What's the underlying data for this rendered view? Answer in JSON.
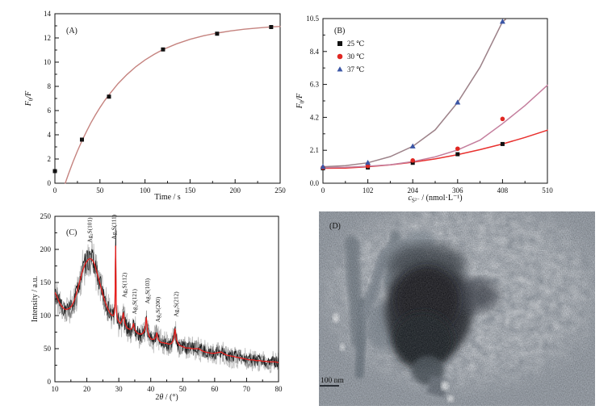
{
  "figure": {
    "background": "#ffffff"
  },
  "chart_data": [
    {
      "id": "panel-a",
      "type": "scatter",
      "panel_label": "(A)",
      "xlabel_parts": [
        {
          "t": "Time / s"
        }
      ],
      "ylabel_parts": [
        {
          "t": "F",
          "i": 1
        },
        {
          "t": "0",
          "sub": 1
        },
        {
          "t": "/",
          "i": 1
        },
        {
          "t": "F",
          "i": 1
        }
      ],
      "xlim": [
        0,
        250
      ],
      "ylim": [
        0,
        14
      ],
      "xticks": [
        0,
        50,
        100,
        150,
        200,
        250
      ],
      "xtick_labels": [
        "0",
        "50",
        "100",
        "150",
        "200",
        "250"
      ],
      "yticks": [
        0,
        2,
        4,
        6,
        8,
        10,
        12,
        14
      ],
      "ytick_labels": [
        "0",
        "2",
        "4",
        "6",
        "8",
        "10",
        "12",
        "14"
      ],
      "x_minor": 25,
      "y_minor": 1,
      "series": [
        {
          "name": "fit-curve",
          "mode": "line",
          "color": "#c5837f",
          "width": 1.4,
          "x": [
            11.5,
            15,
            20,
            25,
            30,
            35,
            40,
            45,
            50,
            55,
            60,
            70,
            80,
            90,
            100,
            110,
            120,
            135,
            150,
            165,
            180,
            195,
            210,
            225,
            240,
            250
          ],
          "y": [
            0,
            0.74,
            1.74,
            2.66,
            3.5,
            4.27,
            4.99,
            5.64,
            6.25,
            6.81,
            7.31,
            8.22,
            8.98,
            9.63,
            10.18,
            10.64,
            11.04,
            11.51,
            11.89,
            12.18,
            12.4,
            12.58,
            12.72,
            12.82,
            12.91,
            12.95
          ]
        },
        {
          "name": "measured-points",
          "mode": "markers",
          "marker": "square",
          "color": "#111111",
          "size": 5,
          "x": [
            0,
            30,
            60,
            120,
            180,
            240
          ],
          "y": [
            1.0,
            3.6,
            7.15,
            11.05,
            12.35,
            12.9
          ]
        }
      ]
    },
    {
      "id": "panel-b",
      "type": "scatter",
      "panel_label": "(B)",
      "xlabel_parts": [
        {
          "t": "c",
          "i": 1
        },
        {
          "t": "S²⁻",
          "sub": 1
        },
        {
          "t": " / (nmol·L⁻¹)"
        }
      ],
      "ylabel_parts": [
        {
          "t": "F",
          "i": 1
        },
        {
          "t": "0",
          "sub": 1
        },
        {
          "t": "/",
          "i": 1
        },
        {
          "t": "F",
          "i": 1
        }
      ],
      "xlim": [
        0,
        510
      ],
      "ylim": [
        0,
        10.5
      ],
      "xticks": [
        0,
        102,
        204,
        306,
        408,
        510
      ],
      "xtick_labels": [
        "0",
        "102",
        "204",
        "306",
        "408",
        "510"
      ],
      "yticks": [
        0,
        2.1,
        4.2,
        6.3,
        8.4,
        10.5
      ],
      "ytick_labels": [
        "0.0",
        "2.1",
        "4.2",
        "6.3",
        "8.4",
        "10.5"
      ],
      "x_minor": 51,
      "y_minor": 1.05,
      "legend": {
        "entries": [
          {
            "label": "25 ℃",
            "marker": "square",
            "color": "#111111"
          },
          {
            "label": "30 ℃",
            "marker": "circle",
            "color": "#e02722"
          },
          {
            "label": "37 ℃",
            "marker": "triangle",
            "color": "#3a55a5"
          }
        ]
      },
      "series": [
        {
          "name": "fit-25C",
          "mode": "line",
          "color": "#e8302e",
          "width": 1.5,
          "x": [
            0,
            51,
            102,
            153,
            204,
            255,
            306,
            357,
            408,
            459,
            510
          ],
          "y": [
            0.95,
            0.97,
            1.05,
            1.17,
            1.34,
            1.55,
            1.82,
            2.14,
            2.5,
            2.92,
            3.38
          ]
        },
        {
          "name": "fit-30C",
          "mode": "line",
          "color": "#c47e9d",
          "width": 1.5,
          "x": [
            0,
            51,
            102,
            153,
            204,
            255,
            306,
            357,
            408,
            459,
            510
          ],
          "y": [
            1.0,
            1.02,
            1.08,
            1.18,
            1.38,
            1.68,
            2.12,
            2.75,
            3.8,
            4.95,
            6.25
          ]
        },
        {
          "name": "fit-37C",
          "mode": "line",
          "color": "#9d8289",
          "width": 1.5,
          "x": [
            0,
            51,
            102,
            153,
            204,
            255,
            306,
            357,
            408,
            415
          ],
          "y": [
            1.05,
            1.12,
            1.3,
            1.7,
            2.35,
            3.4,
            5.15,
            7.4,
            10.3,
            10.45
          ]
        },
        {
          "name": "points-25C",
          "mode": "markers",
          "marker": "square",
          "color": "#111111",
          "size": 5,
          "x": [
            0,
            102,
            204,
            306,
            408
          ],
          "y": [
            0.95,
            1.0,
            1.3,
            1.85,
            2.5
          ]
        },
        {
          "name": "points-30C",
          "mode": "markers",
          "marker": "circle",
          "color": "#e02722",
          "size": 5,
          "x": [
            0,
            102,
            204,
            306,
            408
          ],
          "y": [
            1.0,
            1.1,
            1.45,
            2.2,
            4.1
          ]
        },
        {
          "name": "points-37C",
          "mode": "markers",
          "marker": "triangle",
          "color": "#3a55a5",
          "size": 6,
          "x": [
            0,
            102,
            204,
            306,
            408
          ],
          "y": [
            1.05,
            1.3,
            2.35,
            5.15,
            10.3
          ]
        }
      ]
    },
    {
      "id": "panel-c",
      "type": "line",
      "panel_label": "(C)",
      "xlabel_parts": [
        {
          "t": "2"
        },
        {
          "t": "θ",
          "i": 1
        },
        {
          "t": " / (°)"
        }
      ],
      "ylabel_parts": [
        {
          "t": "Intensity / a.u."
        }
      ],
      "xlim": [
        10,
        80
      ],
      "ylim": [
        0,
        250
      ],
      "xticks": [
        10,
        20,
        30,
        40,
        50,
        60,
        70,
        80
      ],
      "xtick_labels": [
        "10",
        "20",
        "30",
        "40",
        "50",
        "60",
        "70",
        "80"
      ],
      "yticks": [
        0,
        50,
        100,
        150,
        200,
        250
      ],
      "ytick_labels": [
        "0",
        "50",
        "100",
        "150",
        "200",
        "250"
      ],
      "x_minor": 5,
      "y_minor": 25,
      "raw_color": "#151515",
      "smoothed_color": "#e8211f",
      "noise": {
        "step": 0.15,
        "base_amp": 7,
        "amp_scale": 0.055
      },
      "raw_spike": {
        "x": 29,
        "extra": 57,
        "sigma": 0.1
      },
      "backbone": [
        [
          10,
          135
        ],
        [
          10.5,
          130
        ],
        [
          11,
          124
        ],
        [
          11.5,
          119
        ],
        [
          12,
          115
        ],
        [
          12.5,
          112
        ],
        [
          13,
          110
        ],
        [
          13.5,
          109
        ],
        [
          14,
          110
        ],
        [
          14.5,
          111
        ],
        [
          15,
          113
        ],
        [
          15.5,
          117
        ],
        [
          16,
          122
        ],
        [
          16.5,
          129
        ],
        [
          17,
          138
        ],
        [
          17.5,
          147
        ],
        [
          18,
          156
        ],
        [
          18.5,
          165
        ],
        [
          19,
          172
        ],
        [
          19.5,
          178
        ],
        [
          20,
          182
        ],
        [
          20.5,
          185
        ],
        [
          21,
          186
        ],
        [
          21.5,
          185
        ],
        [
          22,
          182
        ],
        [
          22.5,
          176
        ],
        [
          23,
          168
        ],
        [
          23.5,
          159
        ],
        [
          24,
          150
        ],
        [
          24.5,
          141
        ],
        [
          25,
          132
        ],
        [
          25.5,
          124
        ],
        [
          26,
          117
        ],
        [
          26.5,
          111
        ],
        [
          27,
          106
        ],
        [
          27.5,
          102
        ],
        [
          28,
          100
        ],
        [
          28.5,
          101
        ],
        [
          28.8,
          115
        ],
        [
          29,
          205
        ],
        [
          29.2,
          112
        ],
        [
          29.5,
          96
        ],
        [
          30,
          91
        ],
        [
          30.5,
          88
        ],
        [
          31,
          93
        ],
        [
          31.4,
          104
        ],
        [
          31.8,
          92
        ],
        [
          32,
          87
        ],
        [
          32.5,
          82
        ],
        [
          33,
          80
        ],
        [
          33.5,
          79
        ],
        [
          34,
          80
        ],
        [
          34.3,
          83
        ],
        [
          34.6,
          88
        ],
        [
          35,
          79
        ],
        [
          35.5,
          75
        ],
        [
          36,
          73
        ],
        [
          36.5,
          72
        ],
        [
          37,
          72
        ],
        [
          37.5,
          73
        ],
        [
          38,
          77
        ],
        [
          38.3,
          84
        ],
        [
          38.6,
          97
        ],
        [
          39,
          77
        ],
        [
          39.5,
          69
        ],
        [
          40,
          65
        ],
        [
          40.5,
          64
        ],
        [
          41,
          64
        ],
        [
          41.5,
          67
        ],
        [
          41.9,
          74
        ],
        [
          42.3,
          64
        ],
        [
          43,
          60
        ],
        [
          43.5,
          59
        ],
        [
          44,
          59
        ],
        [
          44.5,
          58
        ],
        [
          45,
          58
        ],
        [
          45.5,
          57
        ],
        [
          46,
          57
        ],
        [
          46.5,
          58
        ],
        [
          47,
          62
        ],
        [
          47.3,
          68
        ],
        [
          47.6,
          80
        ],
        [
          48,
          64
        ],
        [
          48.5,
          58
        ],
        [
          49,
          55
        ],
        [
          49.5,
          54
        ],
        [
          50,
          53
        ],
        [
          51,
          51
        ],
        [
          52,
          51
        ],
        [
          53,
          50
        ],
        [
          54,
          50
        ],
        [
          55,
          50
        ],
        [
          56,
          47
        ],
        [
          57,
          45
        ],
        [
          58,
          44
        ],
        [
          59,
          43
        ],
        [
          60,
          43
        ],
        [
          61,
          44
        ],
        [
          62,
          45
        ],
        [
          63,
          42
        ],
        [
          64,
          40
        ],
        [
          65,
          39
        ],
        [
          66,
          38
        ],
        [
          67,
          37
        ],
        [
          68,
          36
        ],
        [
          69,
          35
        ],
        [
          70,
          34
        ],
        [
          71,
          33
        ],
        [
          72,
          33
        ],
        [
          73,
          32
        ],
        [
          74,
          32
        ],
        [
          75,
          31
        ],
        [
          76,
          31
        ],
        [
          77,
          30
        ],
        [
          78,
          30
        ],
        [
          79,
          30
        ],
        [
          80,
          29
        ]
      ],
      "peaks": [
        {
          "label": "Ag₂S(101)",
          "x": 21,
          "lx": 20.8,
          "ly": 210
        },
        {
          "label": "Ag₂S(111)",
          "x": 29,
          "lx": 28.3,
          "ly": 215
        },
        {
          "label": "Ag₂S(112)",
          "x": 31.4,
          "lx": 31.6,
          "ly": 127
        },
        {
          "label": "Ag₂S(121)",
          "x": 34.6,
          "lx": 34.8,
          "ly": 102
        },
        {
          "label": "Ag₂S(103)",
          "x": 38.6,
          "lx": 38.8,
          "ly": 118
        },
        {
          "label": "Ag₂S(200)",
          "x": 41.9,
          "lx": 42.1,
          "ly": 90
        },
        {
          "label": "Ag₂S(212)",
          "x": 47.6,
          "lx": 47.8,
          "ly": 98
        }
      ]
    },
    {
      "id": "panel-d",
      "type": "image",
      "panel_label": "(D)",
      "scale_bar_label": "100 nm"
    }
  ]
}
